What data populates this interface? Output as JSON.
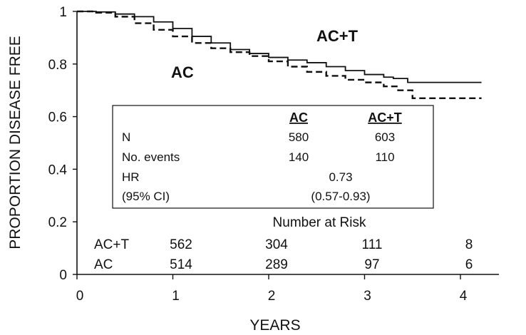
{
  "chart_data": {
    "type": "line",
    "title": "",
    "xlabel": "YEARS",
    "ylabel": "PROPORTION DISEASE FREE",
    "xlim": [
      0,
      4.2
    ],
    "ylim": [
      0,
      1
    ],
    "x_ticks": [
      "0",
      "1",
      "2",
      "3",
      "4"
    ],
    "y_ticks": [
      "0",
      "0.2",
      "0.4",
      "0.6",
      "0.8",
      "1"
    ],
    "grid": false,
    "series": [
      {
        "name": "AC+T",
        "line_style": "solid",
        "x": [
          0,
          0.2,
          0.4,
          0.6,
          0.8,
          1.0,
          1.2,
          1.4,
          1.6,
          1.8,
          2.0,
          2.2,
          2.4,
          2.6,
          2.8,
          3.0,
          3.2,
          3.3,
          3.45,
          4.22
        ],
        "y": [
          1.0,
          0.998,
          0.99,
          0.98,
          0.96,
          0.935,
          0.905,
          0.88,
          0.855,
          0.84,
          0.825,
          0.815,
          0.805,
          0.79,
          0.775,
          0.76,
          0.75,
          0.745,
          0.73,
          0.73
        ]
      },
      {
        "name": "AC",
        "line_style": "dashed",
        "x": [
          0,
          0.2,
          0.4,
          0.6,
          0.8,
          1.0,
          1.2,
          1.4,
          1.6,
          1.8,
          2.0,
          2.2,
          2.4,
          2.6,
          2.8,
          3.0,
          3.2,
          3.35,
          3.5,
          4.22
        ],
        "y": [
          1.0,
          0.995,
          0.98,
          0.955,
          0.93,
          0.905,
          0.88,
          0.86,
          0.845,
          0.83,
          0.81,
          0.79,
          0.77,
          0.755,
          0.74,
          0.73,
          0.715,
          0.7,
          0.67,
          0.67
        ]
      }
    ],
    "curve_labels": [
      {
        "text": "AC+T",
        "x": 2.55,
        "y": 0.905
      },
      {
        "text": "AC",
        "x": 1.1,
        "y": 0.765
      }
    ],
    "legend_table": {
      "headers": [
        "AC",
        "AC+T"
      ],
      "rows": [
        {
          "label": "N",
          "ac": "580",
          "act": "603"
        },
        {
          "label": "No. events",
          "ac": "140",
          "act": "110"
        }
      ],
      "hr_label": "HR",
      "hr_value": "0.73",
      "ci_label": "(95% CI)",
      "ci_value": "(0.57-0.93)"
    },
    "number_at_risk": {
      "title": "Number at Risk",
      "rows": [
        {
          "label": "AC+T",
          "values": [
            "562",
            "304",
            "111",
            "8"
          ]
        },
        {
          "label": "AC",
          "values": [
            "514",
            "289",
            "97",
            "6"
          ]
        }
      ]
    }
  }
}
